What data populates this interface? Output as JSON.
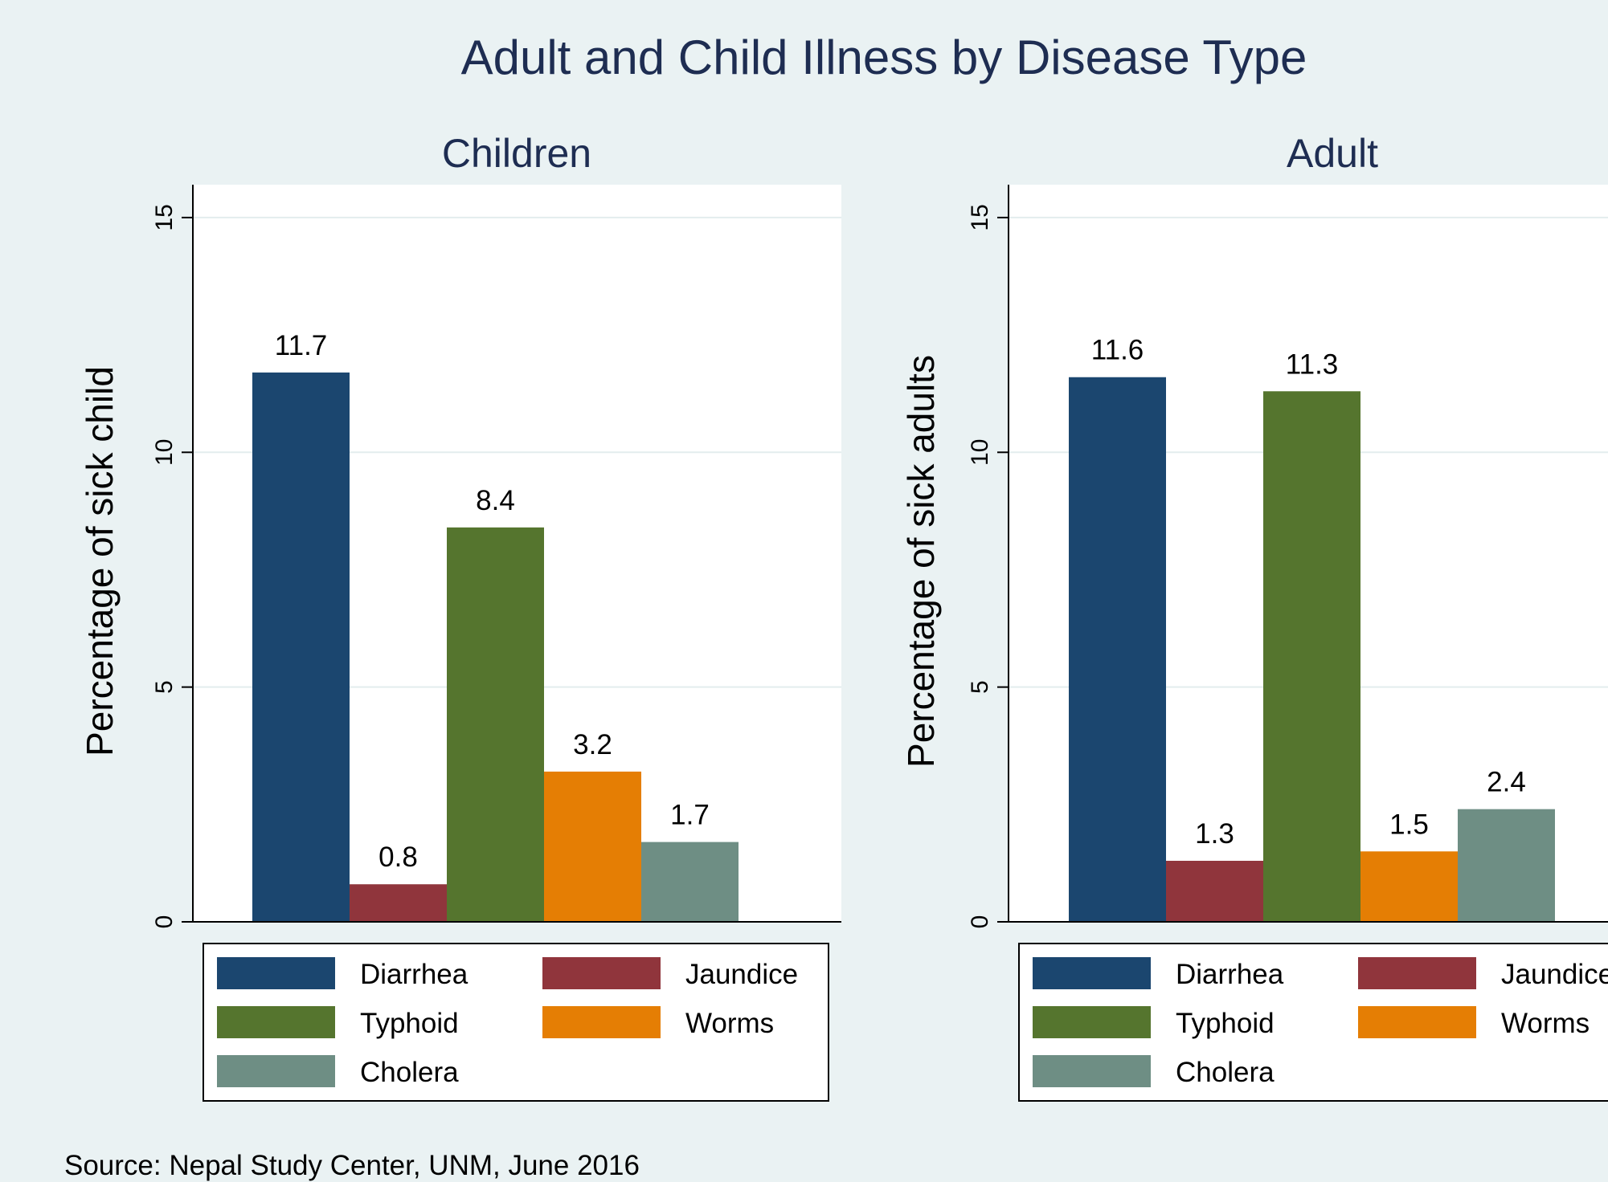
{
  "title": "Adult and Child Illness by Disease Type",
  "source": "Source: Nepal Study Center, UNM, June 2016",
  "colors": {
    "background": "#eaf2f3",
    "plot_area": "#ffffff",
    "grid": "#e3edee",
    "title_text": "#1e2d52"
  },
  "chart_data": [
    {
      "type": "bar",
      "subtitle": "Children",
      "ylabel": "Percentage of sick child",
      "ylim": [
        0,
        15.7
      ],
      "yticks": [
        0,
        5,
        10,
        15
      ],
      "grid": true,
      "legend_position": "bottom",
      "series": [
        {
          "name": "Diarrhea",
          "value": 11.7,
          "label": "11.7",
          "color": "#1b466f"
        },
        {
          "name": "Jaundice",
          "value": 0.8,
          "label": "0.8",
          "color": "#90353c"
        },
        {
          "name": "Typhoid",
          "value": 8.4,
          "label": "8.4",
          "color": "#55752e"
        },
        {
          "name": "Worms",
          "value": 3.2,
          "label": "3.2",
          "color": "#e57e04"
        },
        {
          "name": "Cholera",
          "value": 1.7,
          "label": "1.7",
          "color": "#6e8e84"
        }
      ]
    },
    {
      "type": "bar",
      "subtitle": "Adult",
      "ylabel": "Percentage of sick adults",
      "ylim": [
        0,
        15.7
      ],
      "yticks": [
        0,
        5,
        10,
        15
      ],
      "grid": true,
      "legend_position": "bottom",
      "series": [
        {
          "name": "Diarrhea",
          "value": 11.6,
          "label": "11.6",
          "color": "#1b466f"
        },
        {
          "name": "Jaundice",
          "value": 1.3,
          "label": "1.3",
          "color": "#90353c"
        },
        {
          "name": "Typhoid",
          "value": 11.3,
          "label": "11.3",
          "color": "#55752e"
        },
        {
          "name": "Worms",
          "value": 1.5,
          "label": "1.5",
          "color": "#e57e04"
        },
        {
          "name": "Cholera",
          "value": 2.4,
          "label": "2.4",
          "color": "#6e8e84"
        }
      ]
    }
  ]
}
